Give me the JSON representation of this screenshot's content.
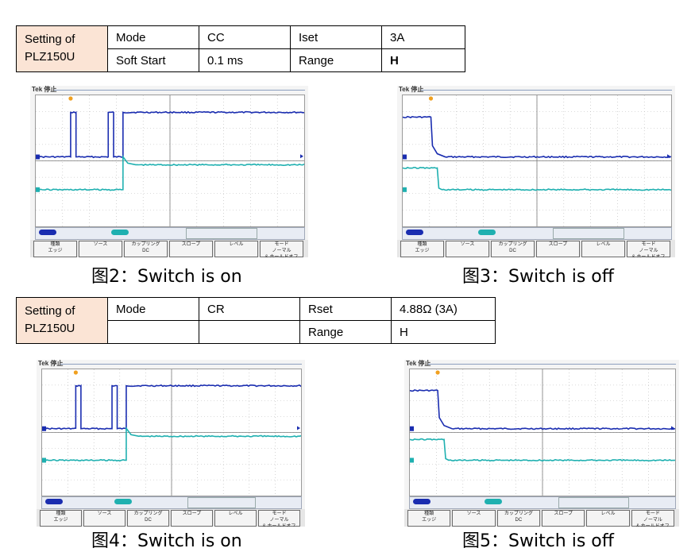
{
  "table1": {
    "device_label": "Setting of PLZ150U",
    "row1": [
      "Mode",
      "CC",
      "Iset",
      "3A"
    ],
    "row2": [
      "Soft Start",
      "0.1 ms",
      "Range",
      "H"
    ]
  },
  "table2": {
    "device_label": "Setting of PLZ150U",
    "row1": [
      "Mode",
      "CR",
      "Rset",
      "4.88Ω (3A)"
    ],
    "row2": [
      "",
      "",
      "Range",
      "H"
    ]
  },
  "scope": {
    "brand": "Tek 停止",
    "menu_buttons": [
      "種類\nエッジ",
      "ソース",
      "カップリング\nDC",
      "スロープ",
      "レベル",
      "モード\nノーマル\n& ホールドオフ"
    ]
  },
  "captions": {
    "fig2": "图2：Switch is on",
    "fig3": "图3：Switch is off",
    "fig4": "图4：Switch is on",
    "fig5": "图5：Switch is off"
  },
  "colors": {
    "voltage_trace": "#1a2db0",
    "current_trace": "#1fb0b0",
    "trigger_marker": "#f0a020",
    "table_header_bg": "#fbe4d5"
  }
}
